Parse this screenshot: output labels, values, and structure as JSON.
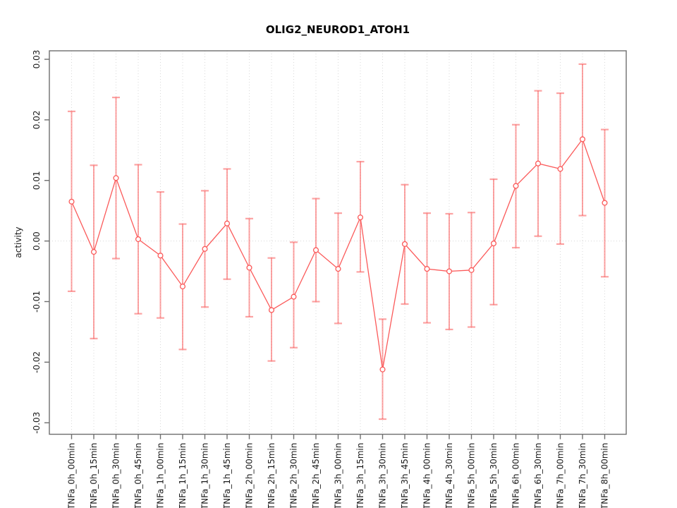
{
  "chart_data": {
    "type": "line",
    "title": "OLIG2_NEUROD1_ATOH1",
    "xlabel": "",
    "ylabel": "activity",
    "legend_position": "none",
    "categories": [
      "TNFa_0h_00min",
      "TNFa_0h_15min",
      "TNFa_0h_30min",
      "TNFa_0h_45min",
      "TNFa_1h_00min",
      "TNFa_1h_15min",
      "TNFa_1h_30min",
      "TNFa_1h_45min",
      "TNFa_2h_00min",
      "TNFa_2h_15min",
      "TNFa_2h_30min",
      "TNFa_2h_45min",
      "TNFa_3h_00min",
      "TNFa_3h_15min",
      "TNFa_3h_30min",
      "TNFa_3h_45min",
      "TNFa_4h_00min",
      "TNFa_4h_30min",
      "TNFa_5h_00min",
      "TNFa_5h_30min",
      "TNFa_6h_00min",
      "TNFa_6h_30min",
      "TNFa_7h_00min",
      "TNFa_7h_30min",
      "TNFa_8h_00min"
    ],
    "series": [
      {
        "name": "activity",
        "marker": "open-circle",
        "values": [
          0.0065,
          -0.0018,
          0.0104,
          0.0003,
          -0.0024,
          -0.0075,
          -0.0013,
          0.0029,
          -0.0044,
          -0.0114,
          -0.0092,
          -0.0015,
          -0.0046,
          0.0039,
          -0.0212,
          -0.0005,
          -0.0046,
          -0.005,
          -0.0048,
          -0.0004,
          0.0091,
          0.0128,
          0.0119,
          0.0168,
          0.0063
        ],
        "upper": [
          0.0214,
          0.0125,
          0.0237,
          0.0126,
          0.0081,
          0.0028,
          0.0083,
          0.0119,
          0.0037,
          -0.0028,
          -0.0002,
          0.007,
          0.0046,
          0.0131,
          -0.0129,
          0.0093,
          0.0046,
          0.0045,
          0.0047,
          0.0102,
          0.0192,
          0.0248,
          0.0244,
          0.0292,
          0.0184
        ],
        "lower": [
          -0.0083,
          -0.0161,
          -0.0029,
          -0.012,
          -0.0127,
          -0.0179,
          -0.0109,
          -0.0063,
          -0.0125,
          -0.0198,
          -0.0176,
          -0.01,
          -0.0136,
          -0.0051,
          -0.0294,
          -0.0104,
          -0.0135,
          -0.0146,
          -0.0142,
          -0.0105,
          -0.0011,
          0.0008,
          -0.0005,
          0.0042,
          -0.0059
        ]
      }
    ],
    "y_ticks": {
      "values": [
        -0.03,
        -0.02,
        -0.01,
        0.0,
        0.01,
        0.02,
        0.03
      ],
      "labels": [
        "-0.03",
        "-0.02",
        "-0.01",
        "0.00",
        "0.01",
        "0.02",
        "0.03"
      ]
    },
    "ylim": [
      -0.0319,
      0.0314
    ],
    "grid": {
      "vertical": "dotted-per-category",
      "horizontal_zero_line": "dotted"
    },
    "colors": {
      "line": "#fb5a5a",
      "marker_stroke": "#fb5a5a",
      "marker_fill": "#ffffff",
      "error_bar": "rgba(250, 88, 88, 0.55)",
      "grid": "#d8d8d8",
      "zero_line": "#d8d8d8",
      "axis": "#6e6e6e",
      "tick_text": "#1a1a1a",
      "title": "#000000"
    }
  }
}
